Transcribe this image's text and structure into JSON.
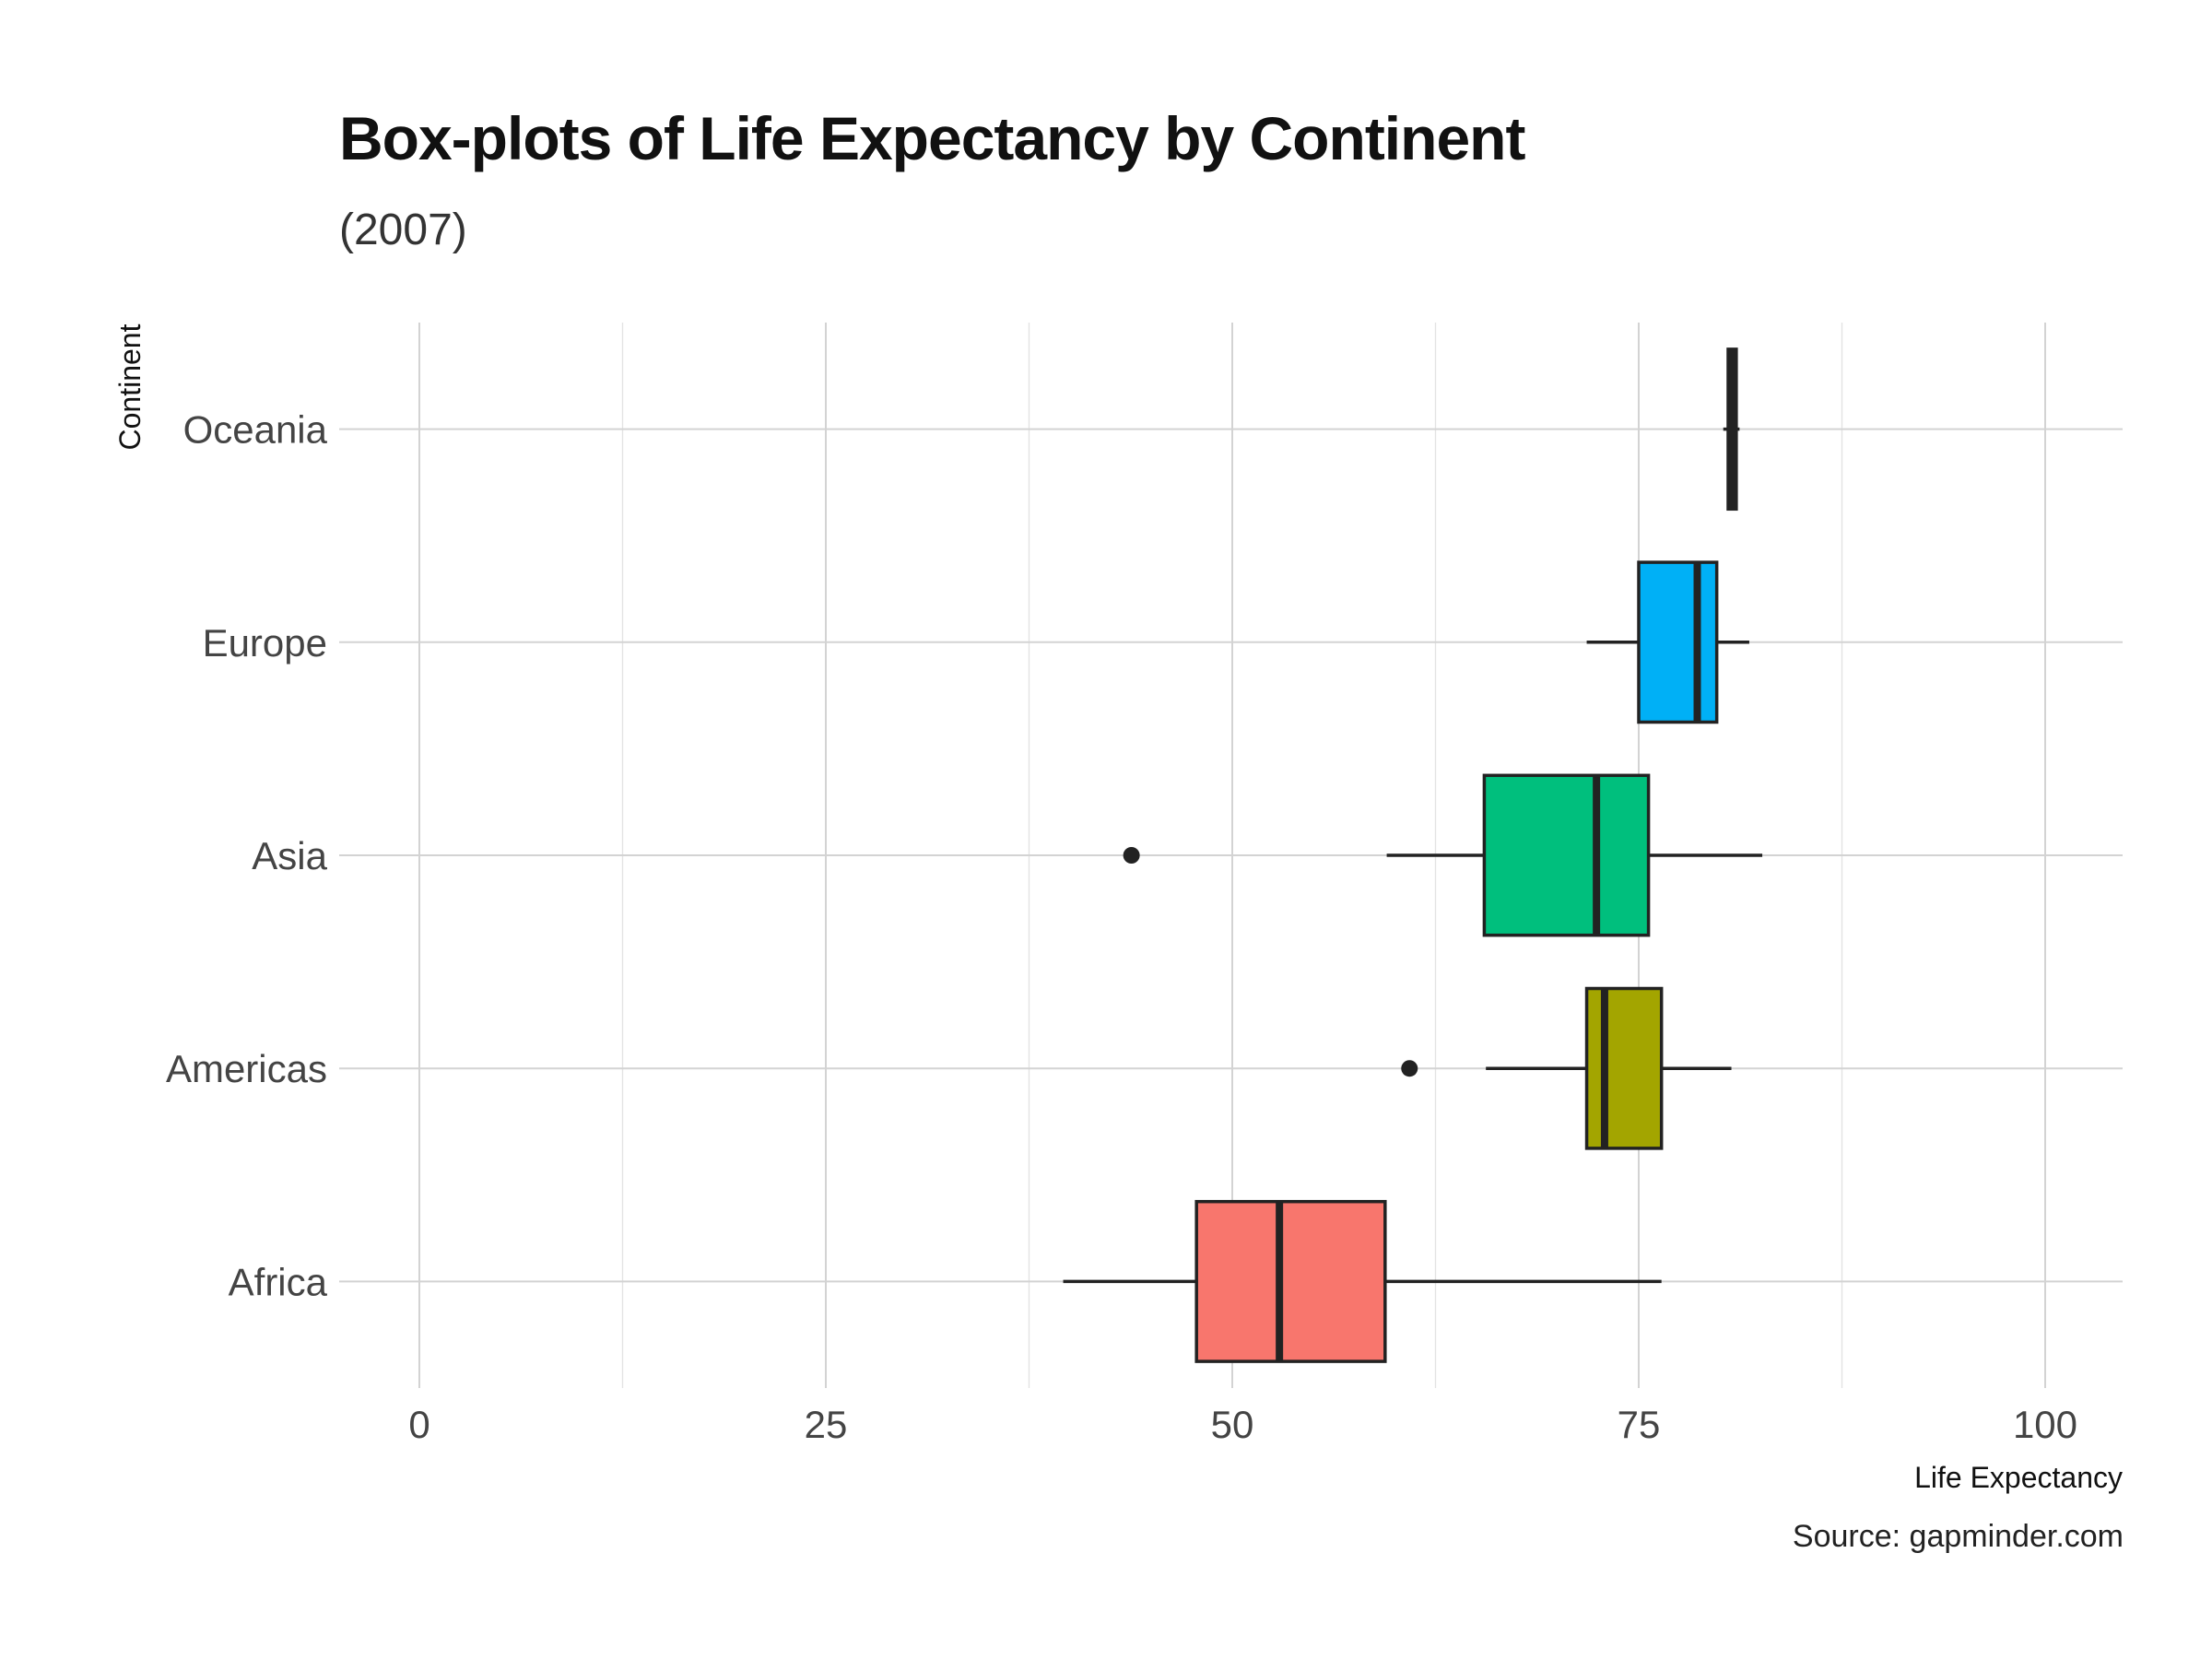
{
  "chart_data": {
    "type": "boxplot",
    "orientation": "horizontal",
    "title": "Box-plots of Life Expectancy by Continent",
    "subtitle": "(2007)",
    "caption": "Source: gapminder.com",
    "xlabel": "Life Expectancy",
    "ylabel": "Continent",
    "xlim": [
      -2,
      105
    ],
    "x_ticks": [
      0,
      25,
      50,
      75,
      100
    ],
    "grid": true,
    "legend": "none",
    "categories": [
      "Africa",
      "Americas",
      "Asia",
      "Europe",
      "Oceania"
    ],
    "boxes": [
      {
        "category": "Africa",
        "whisker_low": 39.6,
        "q1": 47.8,
        "median": 52.9,
        "q3": 59.4,
        "whisker_high": 76.4,
        "outliers": [],
        "color": "#F8766D"
      },
      {
        "category": "Americas",
        "whisker_low": 65.6,
        "q1": 71.8,
        "median": 72.9,
        "q3": 76.4,
        "whisker_high": 80.7,
        "outliers": [
          60.9
        ],
        "color": "#A3A500"
      },
      {
        "category": "Asia",
        "whisker_low": 59.5,
        "q1": 65.5,
        "median": 72.4,
        "q3": 75.6,
        "whisker_high": 82.6,
        "outliers": [
          43.8
        ],
        "color": "#00BF7D"
      },
      {
        "category": "Europe",
        "whisker_low": 71.8,
        "q1": 75.0,
        "median": 78.6,
        "q3": 79.8,
        "whisker_high": 81.8,
        "outliers": [],
        "color": "#00B0F6"
      },
      {
        "category": "Oceania",
        "whisker_low": 80.2,
        "q1": 80.5,
        "median": 80.7,
        "q3": 81.0,
        "whisker_high": 81.2,
        "outliers": [],
        "color": "#E76BF3"
      }
    ]
  }
}
